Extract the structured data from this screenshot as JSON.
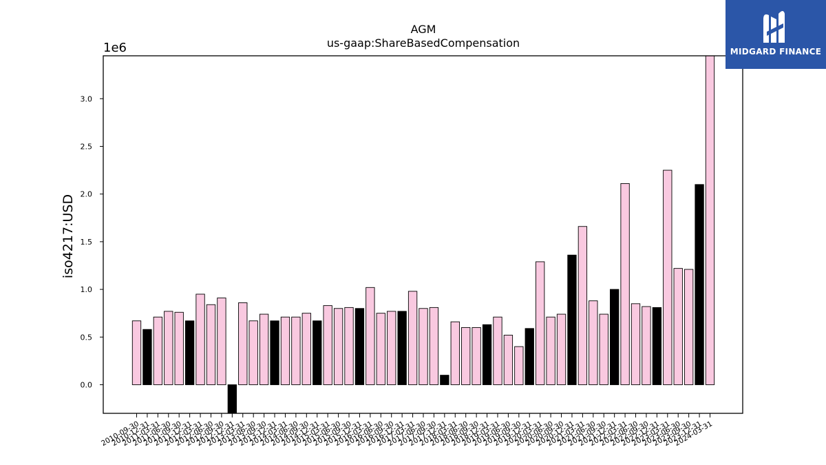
{
  "chart_data": {
    "type": "bar",
    "title": "AGM",
    "subtitle": "us-gaap:ShareBasedCompensation",
    "xlabel": "",
    "ylabel": "iso4217:USD",
    "y_offset_label": "1e6",
    "ylim": [
      -0.3,
      3.45
    ],
    "yticks": [
      0.0,
      0.5,
      1.0,
      1.5,
      2.0,
      2.5,
      3.0
    ],
    "ytick_labels": [
      "0.0",
      "0.5",
      "1.0",
      "1.5",
      "2.0",
      "2.5",
      "3.0"
    ],
    "grid": false,
    "colors": {
      "quarterly": "#f9c9e0",
      "annual": "#000000",
      "edge": "#000000"
    },
    "categories": [
      "2010-09-30",
      "2010-12-31",
      "2011-03-31",
      "2011-06-30",
      "2011-09-30",
      "2011-12-31",
      "2012-03-31",
      "2012-06-30",
      "2012-09-30",
      "2012-12-31",
      "2013-03-31",
      "2013-06-30",
      "2013-09-30",
      "2013-12-31",
      "2014-03-31",
      "2014-06-30",
      "2014-09-30",
      "2014-12-31",
      "2015-03-31",
      "2015-06-30",
      "2015-09-30",
      "2015-12-31",
      "2016-03-31",
      "2016-06-30",
      "2016-09-30",
      "2016-12-31",
      "2017-03-31",
      "2017-06-30",
      "2017-09-30",
      "2017-12-31",
      "2018-03-31",
      "2018-06-30",
      "2018-09-30",
      "2018-12-31",
      "2019-03-31",
      "2019-06-30",
      "2019-09-30",
      "2019-12-31",
      "2020-03-31",
      "2020-06-30",
      "2020-09-30",
      "2020-12-31",
      "2021-03-31",
      "2021-06-30",
      "2021-09-30",
      "2021-12-31",
      "2022-03-31",
      "2022-06-30",
      "2022-09-30",
      "2022-12-31",
      "2023-03-31",
      "2023-06-30",
      "2023-09-30",
      "2023-12-31",
      "2024-03-31"
    ],
    "values": [
      0.67,
      0.58,
      0.71,
      0.77,
      0.76,
      0.67,
      0.95,
      0.84,
      0.91,
      -0.3,
      0.86,
      0.67,
      0.74,
      0.67,
      0.71,
      0.71,
      0.75,
      0.67,
      0.83,
      0.8,
      0.81,
      0.8,
      1.02,
      0.75,
      0.77,
      0.77,
      0.98,
      0.8,
      0.81,
      0.1,
      0.66,
      0.6,
      0.6,
      0.63,
      0.71,
      0.52,
      0.4,
      0.59,
      1.29,
      0.71,
      0.74,
      1.36,
      1.66,
      0.88,
      0.74,
      1.0,
      2.11,
      0.85,
      0.82,
      0.81,
      2.25,
      1.22,
      1.21,
      2.1,
      3.45
    ],
    "annual_flags": [
      0,
      1,
      0,
      0,
      0,
      1,
      0,
      0,
      0,
      1,
      0,
      0,
      0,
      1,
      0,
      0,
      0,
      1,
      0,
      0,
      0,
      1,
      0,
      0,
      0,
      1,
      0,
      0,
      0,
      1,
      0,
      0,
      0,
      1,
      0,
      0,
      0,
      1,
      0,
      0,
      0,
      1,
      0,
      0,
      0,
      1,
      0,
      0,
      0,
      1,
      0,
      0,
      0,
      1,
      0
    ]
  },
  "logo": {
    "text": "MIDGARD FINANCE",
    "background": "#2b56a8",
    "icon": "midgard-logo-icon"
  }
}
